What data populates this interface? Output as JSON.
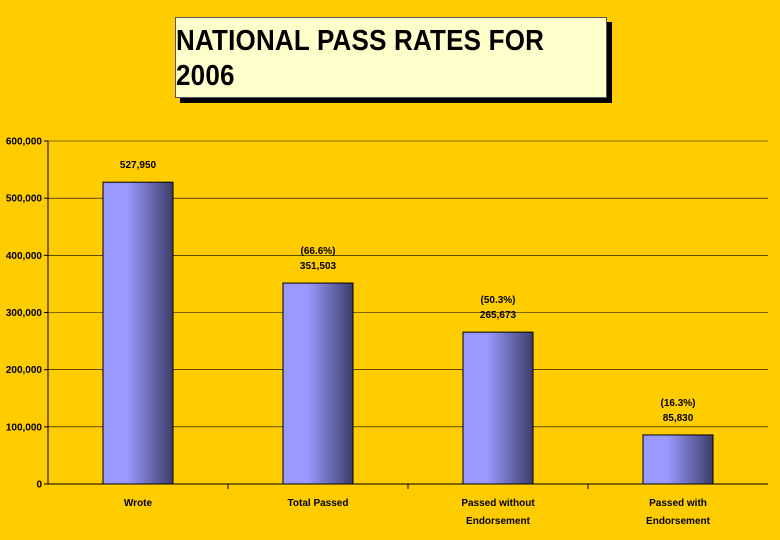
{
  "chart_data": {
    "type": "bar",
    "title": "NATIONAL PASS RATES FOR 2006",
    "categories": [
      [
        "Wrote"
      ],
      [
        "Total Passed"
      ],
      [
        "Passed without",
        "Endorsement"
      ],
      [
        "Passed with",
        "Endorsement"
      ]
    ],
    "values": [
      527950,
      351503,
      265673,
      85830
    ],
    "value_labels": [
      "527,950",
      "351,503",
      "265,673",
      "85,830"
    ],
    "percent_labels": [
      "",
      "(66.6%)",
      "(50.3%)",
      "(16.3%)"
    ],
    "yticks": [
      "0",
      "100,000",
      "200,000",
      "300,000",
      "400,000",
      "500,000",
      "600,000"
    ],
    "ylim": [
      0,
      600000
    ],
    "grid": true,
    "colors": {
      "background": "#FFCC00",
      "bar_light": "#9999FF",
      "bar_dark": "#3D3D6B",
      "gridline": "#000000"
    }
  }
}
